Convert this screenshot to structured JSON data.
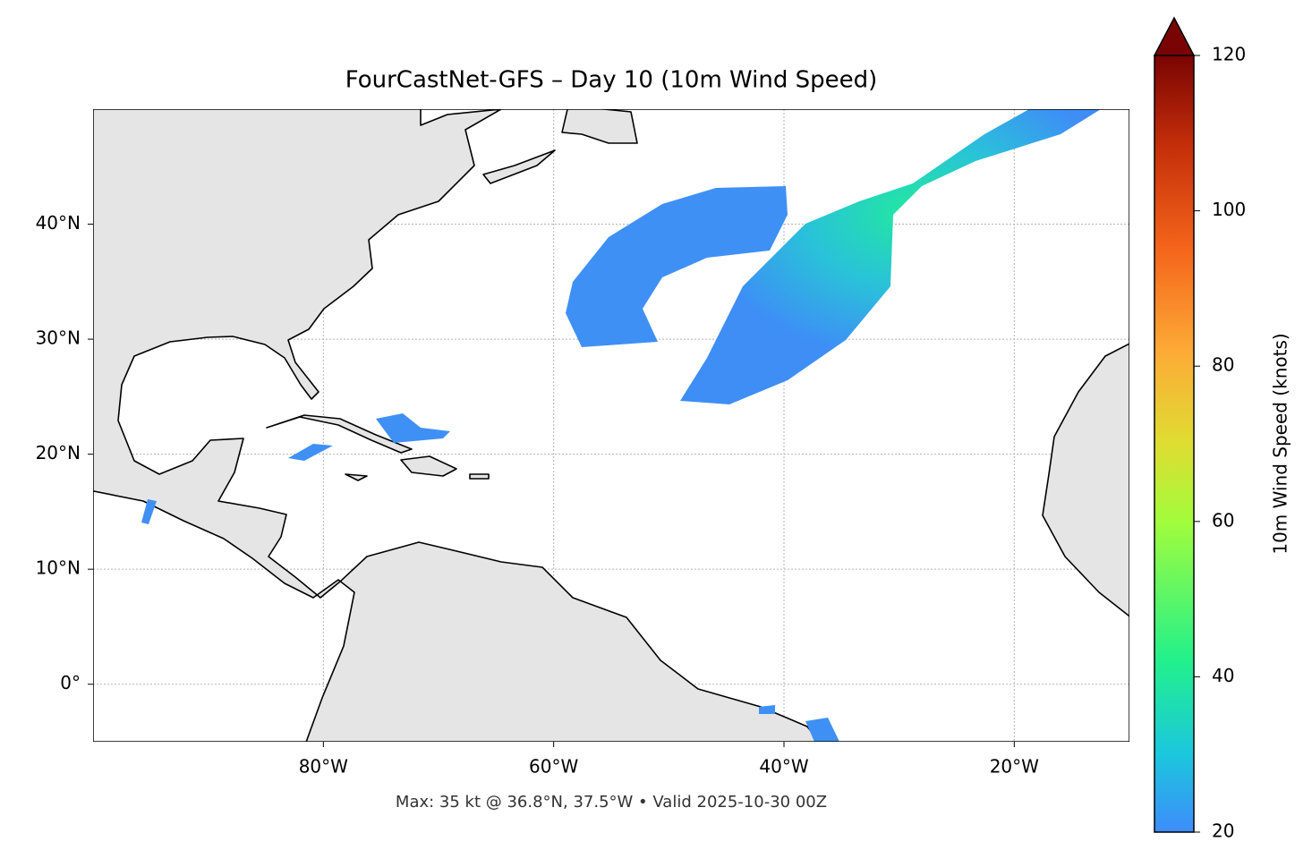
{
  "map": {
    "title": "FourCastNet-GFS – Day 10 (10m Wind Speed)",
    "footer": "Max: 35 kt @ 36.8°N, 37.5°W • Valid 2025-10-30 00Z",
    "xlim": [
      -100,
      -10
    ],
    "ylim": [
      -5,
      50
    ],
    "xticks": [
      {
        "value": -80,
        "label": "80°W"
      },
      {
        "value": -60,
        "label": "60°W"
      },
      {
        "value": -40,
        "label": "40°W"
      },
      {
        "value": -20,
        "label": "20°W"
      }
    ],
    "yticks": [
      {
        "value": 0,
        "label": "0°"
      },
      {
        "value": 10,
        "label": "10°N"
      },
      {
        "value": 20,
        "label": "20°N"
      },
      {
        "value": 30,
        "label": "30°N"
      },
      {
        "value": 40,
        "label": "40°N"
      }
    ],
    "grid": true,
    "colorbar": {
      "label": "10m Wind Speed (knots)",
      "range": [
        20,
        120
      ],
      "ticks": [
        20,
        40,
        60,
        80,
        100,
        120
      ]
    }
  }
}
